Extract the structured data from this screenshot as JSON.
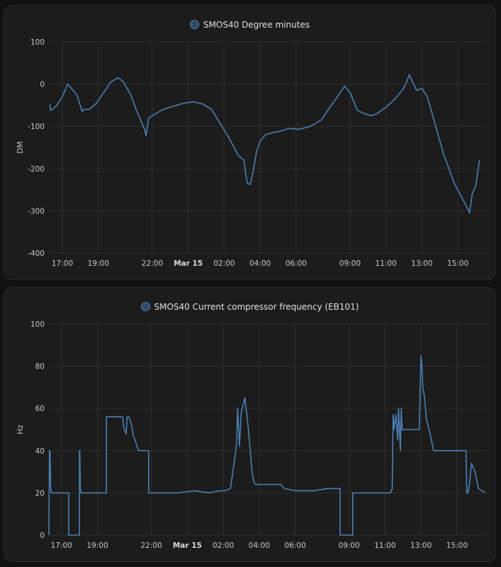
{
  "series_color": "#4a80b4",
  "chart_data": [
    {
      "type": "line",
      "title": "SMOS40 Degree minutes",
      "ylabel": "DM",
      "xlabel": "",
      "ylim": [
        -400,
        100
      ],
      "yticks": [
        "100",
        "0",
        "-100",
        "-200",
        "-300",
        "-400"
      ],
      "xlim": [
        16.25,
        40.65
      ],
      "xticks": [
        {
          "label": "17:00",
          "t": 17
        },
        {
          "label": "19:00",
          "t": 19
        },
        {
          "label": "22:00",
          "t": 22
        },
        {
          "label": "Mar 15",
          "t": 24,
          "bold": true
        },
        {
          "label": "02:00",
          "t": 26
        },
        {
          "label": "04:00",
          "t": 28
        },
        {
          "label": "06:00",
          "t": 30
        },
        {
          "label": "09:00",
          "t": 33
        },
        {
          "label": "11:00",
          "t": 35
        },
        {
          "label": "13:00",
          "t": 37
        },
        {
          "label": "15:00",
          "t": 39
        }
      ],
      "series": [
        {
          "name": "SMOS40 Degree minutes",
          "x": [
            16.3,
            16.35,
            16.45,
            16.7,
            17.0,
            17.3,
            17.8,
            18.1,
            18.2,
            18.5,
            18.9,
            19.3,
            19.7,
            20.1,
            20.4,
            20.8,
            21.1,
            21.4,
            21.6,
            21.65,
            21.8,
            22.2,
            22.6,
            23.2,
            23.8,
            24.3,
            24.8,
            25.3,
            25.8,
            26.3,
            26.8,
            27.1,
            27.2,
            27.3,
            27.45,
            27.6,
            27.8,
            28.0,
            28.3,
            28.7,
            29.1,
            29.6,
            30.2,
            30.8,
            31.4,
            31.8,
            32.3,
            32.7,
            33.0,
            33.2,
            33.4,
            33.8,
            34.2,
            34.5,
            35.0,
            35.5,
            35.9,
            36.1,
            36.3,
            36.7,
            37.0,
            37.3,
            37.7,
            38.2,
            38.8,
            39.3,
            39.6,
            39.65,
            39.8,
            40.0,
            40.2
          ],
          "values": [
            -48,
            -62,
            -60,
            -50,
            -30,
            0,
            -25,
            -65,
            -60,
            -60,
            -45,
            -20,
            5,
            15,
            5,
            -25,
            -60,
            -90,
            -110,
            -122,
            -80,
            -70,
            -60,
            -52,
            -45,
            -42,
            -47,
            -60,
            -95,
            -130,
            -170,
            -180,
            -215,
            -235,
            -238,
            -210,
            -160,
            -135,
            -120,
            -115,
            -112,
            -105,
            -107,
            -100,
            -85,
            -60,
            -30,
            -5,
            -20,
            -40,
            -62,
            -70,
            -75,
            -70,
            -55,
            -35,
            -15,
            0,
            22,
            -15,
            -10,
            -30,
            -90,
            -165,
            -235,
            -275,
            -300,
            -305,
            -260,
            -240,
            -180
          ]
        }
      ]
    },
    {
      "type": "line",
      "title": "SMOS40 Current compressor frequency (EB101)",
      "ylabel": "Hz",
      "xlabel": "",
      "ylim": [
        0,
        100
      ],
      "yticks": [
        "100",
        "80",
        "60",
        "40",
        "20",
        "0"
      ],
      "xlim": [
        16.3,
        40.7
      ],
      "xticks": [
        {
          "label": "17:00",
          "t": 17
        },
        {
          "label": "19:00",
          "t": 19
        },
        {
          "label": "22:00",
          "t": 22
        },
        {
          "label": "Mar 15",
          "t": 24,
          "bold": true
        },
        {
          "label": "02:00",
          "t": 26
        },
        {
          "label": "04:00",
          "t": 28
        },
        {
          "label": "06:00",
          "t": 30
        },
        {
          "label": "09:00",
          "t": 33
        },
        {
          "label": "11:00",
          "t": 35
        },
        {
          "label": "13:00",
          "t": 37
        },
        {
          "label": "15:00",
          "t": 39
        }
      ],
      "series": [
        {
          "name": "SMOS40 Current compressor frequency (EB101)",
          "x": [
            16.3,
            16.33,
            16.36,
            16.4,
            16.45,
            16.5,
            17.4,
            17.4,
            18.0,
            18.0,
            18.02,
            18.05,
            18.08,
            18.12,
            19.0,
            19.5,
            19.5,
            20.0,
            20.0,
            20.4,
            20.45,
            20.5,
            20.6,
            20.65,
            20.75,
            20.9,
            21.0,
            21.1,
            21.2,
            21.3,
            21.4,
            21.8,
            21.85,
            21.85,
            22.5,
            23.5,
            24.4,
            25.2,
            25.8,
            26.1,
            26.4,
            26.7,
            26.75,
            26.8,
            26.9,
            27.0,
            27.2,
            27.4,
            27.6,
            27.7,
            27.8,
            28.0,
            28.4,
            29.2,
            29.4,
            30.0,
            31.0,
            31.8,
            32.5,
            32.5,
            33.2,
            33.2,
            33.25,
            33.3,
            35.3,
            35.4,
            35.45,
            35.5,
            35.6,
            35.7,
            35.75,
            35.8,
            35.85,
            35.9,
            35.95,
            36.0,
            36.5,
            36.9,
            37.0,
            37.05,
            37.1,
            37.2,
            37.3,
            37.5,
            37.7,
            37.8,
            37.9,
            38.2,
            39.0,
            39.5,
            39.55,
            39.6,
            39.7,
            39.8,
            40.0,
            40.2,
            40.4,
            40.55
          ],
          "values": [
            0,
            40,
            40,
            22,
            20,
            20,
            20,
            0,
            0,
            40,
            40,
            22,
            20,
            20,
            20,
            20,
            56,
            56,
            56,
            56,
            52,
            50,
            48,
            56,
            56,
            52,
            47,
            45,
            42,
            40,
            40,
            40,
            40,
            20,
            20,
            20,
            21,
            20,
            21,
            21,
            22,
            40,
            45,
            60,
            42,
            58,
            65,
            50,
            30,
            25,
            24,
            24,
            24,
            24,
            22,
            21,
            21,
            22,
            22,
            0,
            0,
            20,
            20,
            20,
            20,
            22,
            57,
            50,
            57,
            45,
            60,
            50,
            40,
            60,
            50,
            50,
            50,
            50,
            85,
            80,
            70,
            65,
            55,
            48,
            40,
            40,
            40,
            40,
            40,
            40,
            20,
            20,
            24,
            34,
            30,
            22,
            21,
            20
          ]
        }
      ]
    }
  ]
}
